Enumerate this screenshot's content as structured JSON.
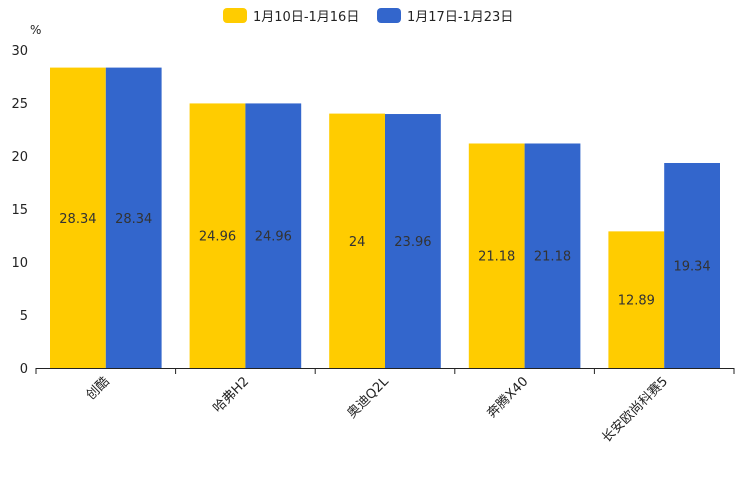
{
  "chart_data": {
    "type": "bar",
    "unit": "%",
    "ylim": [
      0,
      30
    ],
    "yticks": [
      0,
      5,
      10,
      15,
      20,
      25,
      30
    ],
    "categories": [
      "创酷",
      "哈弗H2",
      "奥迪Q2L",
      "奔腾X40",
      "长安欧尚科赛5"
    ],
    "series": [
      {
        "name": "1月10日-1月16日",
        "color": "#FFCC00",
        "values": [
          28.34,
          24.96,
          24,
          21.18,
          12.89
        ],
        "labels": [
          "28.34",
          "24.96",
          "24",
          "21.18",
          "12.89"
        ]
      },
      {
        "name": "1月17日-1月23日",
        "color": "#3366CC",
        "values": [
          28.34,
          24.96,
          23.96,
          21.18,
          19.34
        ],
        "labels": [
          "28.34",
          "24.96",
          "23.96",
          "21.18",
          "19.34"
        ]
      }
    ],
    "legend_position": "top-center",
    "grid": false
  }
}
